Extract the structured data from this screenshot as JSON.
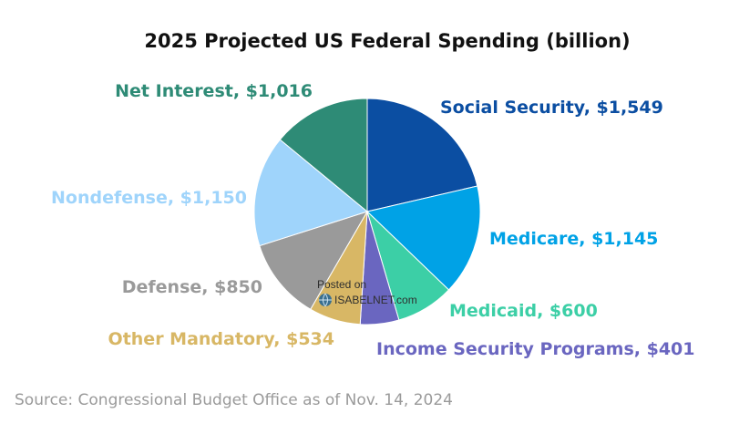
{
  "chart_data": {
    "type": "pie",
    "title": "2025 Projected US Federal Spending (billion)",
    "unit": "billion USD",
    "start": "12 o'clock",
    "direction": "clockwise",
    "slices": [
      {
        "name": "Social Security",
        "value": 1549,
        "label": "Social Security, $1,549",
        "color": "#0b4ea2"
      },
      {
        "name": "Medicare",
        "value": 1145,
        "label": "Medicare, $1,145",
        "color": "#00a2e6"
      },
      {
        "name": "Medicaid",
        "value": 600,
        "label": "Medicaid, $600",
        "color": "#3ccfa6"
      },
      {
        "name": "Income Security Programs",
        "value": 401,
        "label": "Income Security Programs, $401",
        "color": "#6a66c0"
      },
      {
        "name": "Other Mandatory",
        "value": 534,
        "label": "Other Mandatory, $534",
        "color": "#d8b765"
      },
      {
        "name": "Defense",
        "value": 850,
        "label": "Defense, $850",
        "color": "#9a9a9a"
      },
      {
        "name": "Nondefense",
        "value": 1150,
        "label": "Nondefense, $1,150",
        "color": "#9fd4fb"
      },
      {
        "name": "Net Interest",
        "value": 1016,
        "label": "Net Interest, $1,016",
        "color": "#2e8b76"
      }
    ]
  },
  "watermark": {
    "line1": "Posted on",
    "line2": "ISABELNET.com"
  },
  "source": "Source: Congressional Budget Office as of Nov. 14, 2024"
}
